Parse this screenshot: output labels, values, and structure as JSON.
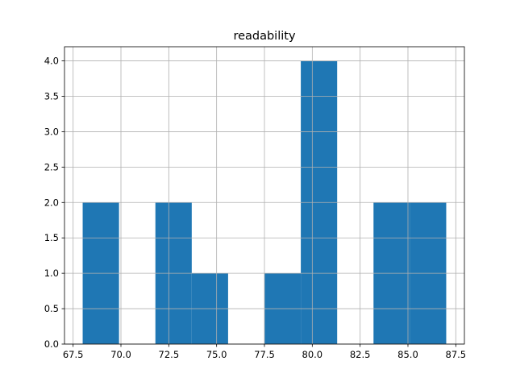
{
  "chart_data": {
    "type": "bar",
    "subtype": "histogram",
    "title": "readability",
    "xlabel": "",
    "ylabel": "",
    "bin_edges": [
      68.0,
      69.9,
      71.8,
      73.7,
      75.6,
      77.5,
      79.4,
      81.3,
      83.2,
      85.1,
      87.0
    ],
    "values": [
      2,
      0,
      2,
      1,
      0,
      1,
      4,
      0,
      2,
      2
    ],
    "xlim": [
      67.05,
      87.95
    ],
    "ylim": [
      0,
      4.2
    ],
    "xticks": [
      67.5,
      70.0,
      72.5,
      75.0,
      77.5,
      80.0,
      82.5,
      85.0,
      87.5
    ],
    "xtick_labels": [
      "67.5",
      "70.0",
      "72.5",
      "75.0",
      "77.5",
      "80.0",
      "82.5",
      "85.0",
      "87.5"
    ],
    "yticks": [
      0,
      0.5,
      1,
      1.5,
      2,
      2.5,
      3,
      3.5,
      4
    ],
    "ytick_labels": [
      "0.0",
      "0.5",
      "1.0",
      "1.5",
      "2.0",
      "2.5",
      "3.0",
      "3.5",
      "4.0"
    ],
    "grid": true,
    "colors": {
      "bar": "#1f77b4",
      "grid": "#b0b0b0"
    }
  }
}
